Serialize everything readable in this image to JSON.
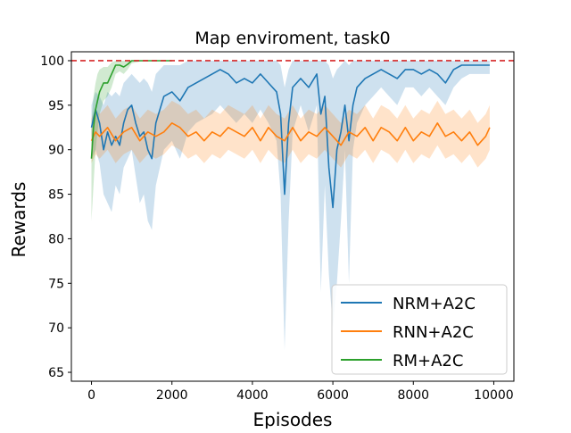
{
  "chart_data": {
    "type": "line",
    "title": "Map enviroment, task0",
    "xlabel": "Episodes",
    "ylabel": "Rewards",
    "xlim": [
      -500,
      10500
    ],
    "ylim": [
      64,
      101
    ],
    "xticks": [
      0,
      2000,
      4000,
      6000,
      8000,
      10000
    ],
    "yticks": [
      65,
      70,
      75,
      80,
      85,
      90,
      95,
      100
    ],
    "grid": false,
    "legend_position": "bottom-right",
    "reference_line": {
      "y": 100,
      "color": "#d62728",
      "style": "dashed"
    },
    "series": [
      {
        "name": "NRM+A2C",
        "color": "#1f77b4",
        "x": [
          0,
          100,
          200,
          300,
          400,
          500,
          600,
          700,
          800,
          900,
          1000,
          1100,
          1200,
          1300,
          1400,
          1500,
          1600,
          1700,
          1800,
          2000,
          2200,
          2400,
          2600,
          2800,
          3000,
          3200,
          3400,
          3600,
          3800,
          4000,
          4200,
          4400,
          4600,
          4700,
          4800,
          4900,
          5000,
          5200,
          5400,
          5600,
          5700,
          5800,
          5900,
          6000,
          6100,
          6200,
          6300,
          6400,
          6500,
          6600,
          6800,
          7000,
          7200,
          7400,
          7600,
          7800,
          8000,
          8200,
          8400,
          8600,
          8800,
          9000,
          9200,
          9400,
          9600,
          9800,
          9900
        ],
        "values": [
          92.5,
          94.5,
          93.0,
          90.0,
          92.0,
          90.5,
          91.5,
          90.5,
          93.0,
          94.5,
          95.0,
          93.0,
          91.5,
          92.0,
          90.0,
          89.0,
          93.0,
          94.5,
          96.0,
          96.5,
          95.5,
          97.0,
          97.5,
          98.0,
          98.5,
          99.0,
          98.5,
          97.5,
          98.0,
          97.5,
          98.5,
          97.5,
          96.5,
          94.0,
          85.0,
          93.0,
          97.0,
          98.0,
          97.0,
          98.5,
          94.0,
          96.0,
          88.0,
          83.5,
          90.0,
          92.0,
          95.0,
          91.0,
          95.0,
          97.0,
          98.0,
          98.5,
          99.0,
          98.5,
          98.0,
          99.0,
          99.0,
          98.5,
          99.0,
          98.5,
          97.5,
          99.0,
          99.5,
          99.5,
          99.5,
          99.5,
          99.5
        ],
        "lower": [
          89.0,
          90.0,
          88.5,
          85.0,
          84.0,
          83.0,
          86.0,
          85.0,
          88.0,
          89.0,
          90.0,
          87.0,
          84.0,
          85.0,
          82.0,
          81.0,
          86.0,
          88.0,
          90.0,
          91.0,
          89.0,
          92.0,
          93.0,
          93.5,
          94.0,
          95.0,
          94.0,
          93.0,
          94.0,
          93.0,
          94.5,
          93.0,
          91.0,
          85.0,
          67.5,
          82.0,
          92.0,
          95.0,
          92.0,
          95.0,
          74.0,
          86.0,
          76.0,
          70.0,
          75.0,
          82.0,
          90.0,
          75.0,
          90.0,
          93.0,
          95.0,
          96.0,
          97.0,
          96.0,
          95.0,
          97.0,
          97.0,
          96.0,
          97.0,
          96.0,
          95.0,
          97.0,
          98.0,
          98.5,
          98.5,
          98.5,
          98.5
        ],
        "upper": [
          95.0,
          96.5,
          96.0,
          95.0,
          96.5,
          96.0,
          96.5,
          96.0,
          97.5,
          98.0,
          98.5,
          98.0,
          97.5,
          98.0,
          97.5,
          96.5,
          98.5,
          99.0,
          99.5,
          99.5,
          99.5,
          100.0,
          100.0,
          100.0,
          100.0,
          100.0,
          100.0,
          100.0,
          100.0,
          100.0,
          100.0,
          100.0,
          100.0,
          99.5,
          97.0,
          99.0,
          100.0,
          100.0,
          100.0,
          100.0,
          100.0,
          100.0,
          99.5,
          98.0,
          99.0,
          99.5,
          100.0,
          99.5,
          100.0,
          100.0,
          100.0,
          100.0,
          100.0,
          100.0,
          100.0,
          100.0,
          100.0,
          100.0,
          100.0,
          100.0,
          100.0,
          100.0,
          100.0,
          100.0,
          100.0,
          100.0,
          100.0
        ]
      },
      {
        "name": "RNN+A2C",
        "color": "#ff7f0e",
        "x": [
          0,
          100,
          200,
          400,
          600,
          800,
          1000,
          1200,
          1400,
          1600,
          1800,
          2000,
          2200,
          2400,
          2600,
          2800,
          3000,
          3200,
          3400,
          3600,
          3800,
          4000,
          4200,
          4400,
          4600,
          4800,
          5000,
          5200,
          5400,
          5600,
          5800,
          6000,
          6200,
          6400,
          6600,
          6800,
          7000,
          7200,
          7400,
          7600,
          7800,
          8000,
          8200,
          8400,
          8600,
          8800,
          9000,
          9200,
          9400,
          9600,
          9800,
          9900
        ],
        "values": [
          91.0,
          92.0,
          91.5,
          92.5,
          91.0,
          92.0,
          92.5,
          91.0,
          92.0,
          91.5,
          92.0,
          93.0,
          92.5,
          91.5,
          92.0,
          91.0,
          92.0,
          91.5,
          92.5,
          92.0,
          91.5,
          92.5,
          91.0,
          92.5,
          91.5,
          91.0,
          92.5,
          91.0,
          92.0,
          91.5,
          92.5,
          91.5,
          90.5,
          92.0,
          91.5,
          92.5,
          91.0,
          92.5,
          92.0,
          91.0,
          92.5,
          91.0,
          92.0,
          91.5,
          93.0,
          91.5,
          92.0,
          91.0,
          92.0,
          90.5,
          91.5,
          92.5
        ],
        "lower": [
          88.5,
          89.5,
          89.0,
          90.0,
          88.5,
          89.5,
          90.0,
          88.5,
          89.5,
          89.0,
          89.5,
          90.5,
          90.0,
          89.0,
          89.5,
          88.5,
          89.5,
          89.0,
          90.0,
          89.5,
          89.0,
          90.0,
          88.5,
          90.0,
          89.0,
          88.5,
          90.0,
          88.5,
          89.5,
          89.0,
          90.0,
          89.0,
          88.0,
          89.5,
          89.0,
          90.0,
          88.5,
          90.0,
          89.5,
          88.5,
          90.0,
          88.5,
          89.5,
          89.0,
          90.5,
          89.0,
          89.5,
          88.5,
          89.5,
          88.0,
          89.0,
          90.0
        ],
        "upper": [
          93.5,
          94.5,
          94.0,
          95.0,
          93.5,
          94.5,
          95.0,
          93.5,
          94.5,
          94.0,
          94.5,
          95.5,
          95.0,
          94.0,
          94.5,
          93.5,
          94.5,
          94.0,
          95.0,
          94.5,
          94.0,
          95.0,
          93.5,
          95.0,
          94.0,
          93.5,
          95.0,
          93.5,
          94.5,
          94.0,
          95.0,
          94.0,
          93.0,
          94.5,
          94.0,
          95.0,
          93.5,
          95.0,
          94.5,
          93.5,
          95.0,
          93.5,
          94.5,
          94.0,
          95.5,
          94.0,
          94.5,
          93.5,
          94.5,
          93.0,
          94.0,
          95.0
        ]
      },
      {
        "name": "RM+A2C",
        "color": "#2ca02c",
        "x": [
          0,
          50,
          100,
          150,
          200,
          300,
          400,
          500,
          600,
          700,
          800,
          900,
          1000,
          1100,
          1200,
          1400,
          1600,
          1800,
          2000
        ],
        "values": [
          89.0,
          92.5,
          94.5,
          95.5,
          96.5,
          97.5,
          97.5,
          98.5,
          99.5,
          99.5,
          99.3,
          99.6,
          100.0,
          100.0,
          100.0,
          100.0,
          100.0,
          100.0,
          100.0
        ],
        "lower": [
          82.0,
          86.0,
          90.0,
          92.0,
          94.0,
          95.5,
          96.0,
          97.0,
          98.5,
          98.8,
          98.5,
          99.0,
          99.7,
          99.8,
          99.9,
          100.0,
          100.0,
          100.0,
          100.0
        ],
        "upper": [
          93.0,
          96.0,
          97.5,
          98.5,
          99.0,
          99.3,
          99.3,
          99.8,
          100.0,
          100.0,
          100.0,
          100.0,
          100.0,
          100.0,
          100.0,
          100.0,
          100.0,
          100.0,
          100.0
        ]
      }
    ]
  }
}
